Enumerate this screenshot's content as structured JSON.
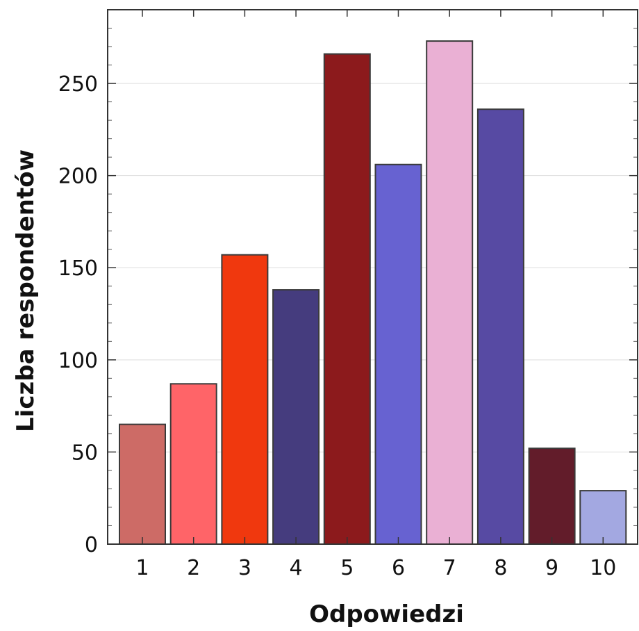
{
  "chart_data": {
    "type": "bar",
    "title": "",
    "xlabel": "Odpowiedzi",
    "ylabel": "Liczba respondentów",
    "categories": [
      "1",
      "2",
      "3",
      "4",
      "5",
      "6",
      "7",
      "8",
      "9",
      "10"
    ],
    "values": [
      65,
      87,
      157,
      138,
      266,
      206,
      273,
      236,
      52,
      29
    ],
    "colors": [
      "#cd6b66",
      "#ff6468",
      "#f0380e",
      "#453c7e",
      "#8c1a1c",
      "#6762d1",
      "#eab0d4",
      "#574aa3",
      "#621c2a",
      "#a3a8e1"
    ],
    "ylim": [
      0,
      290
    ],
    "yticks": [
      0,
      50,
      100,
      150,
      200,
      250
    ],
    "grid": true,
    "legend": "none"
  }
}
